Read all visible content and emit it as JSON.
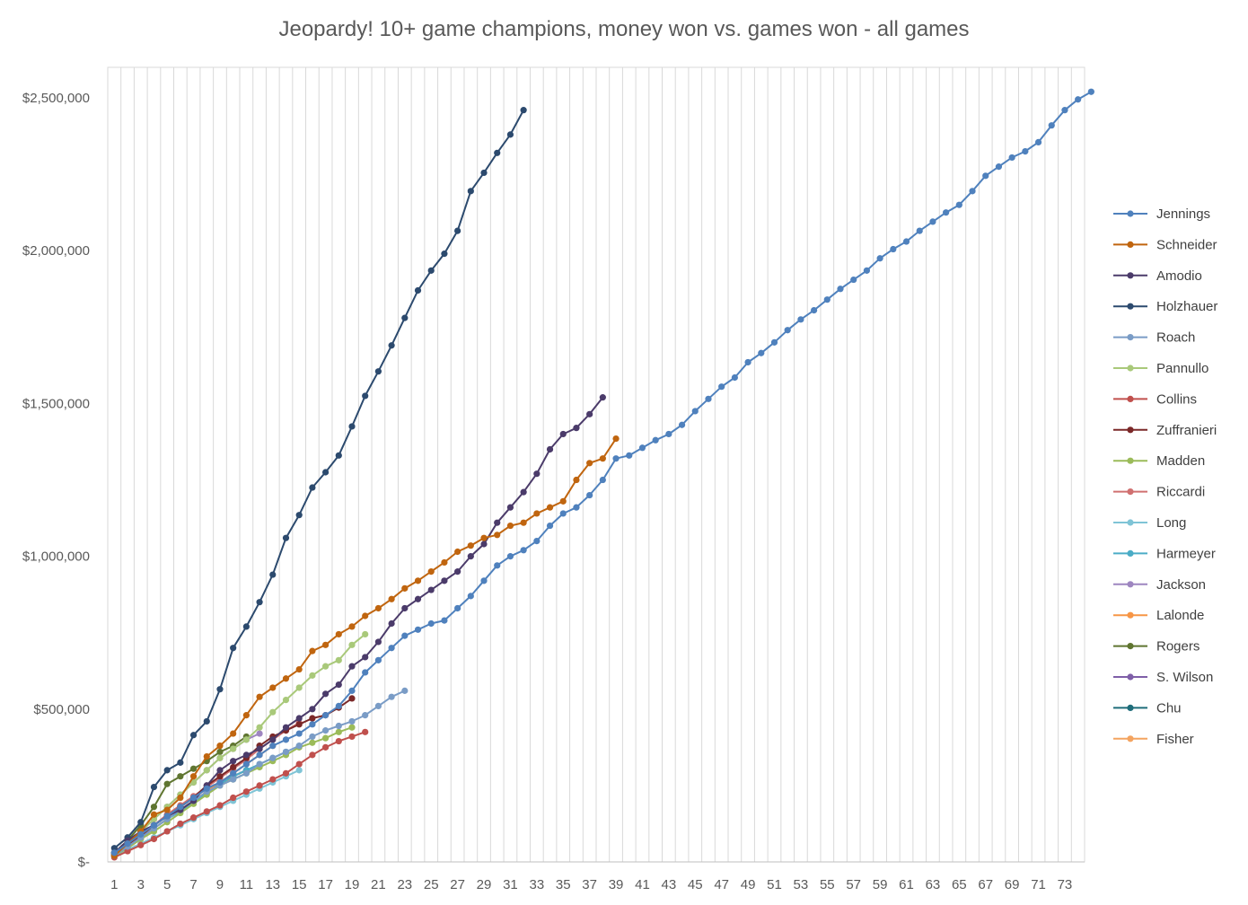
{
  "chart_data": {
    "type": "line",
    "title": "Jeopardy! 10+ game champions, money won vs. games won - all games",
    "xlabel": "",
    "ylabel": "",
    "xlim": [
      1,
      74
    ],
    "ylim": [
      0,
      2600000
    ],
    "x_tick_labels": [
      "1",
      "3",
      "5",
      "7",
      "9",
      "11",
      "13",
      "15",
      "17",
      "19",
      "21",
      "23",
      "25",
      "27",
      "29",
      "31",
      "33",
      "35",
      "37",
      "39",
      "41",
      "43",
      "45",
      "47",
      "49",
      "51",
      "53",
      "55",
      "57",
      "59",
      "61",
      "63",
      "65",
      "67",
      "69",
      "71",
      "73"
    ],
    "y_ticks": [
      {
        "value": 0,
        "label": "$-"
      },
      {
        "value": 500000,
        "label": "$500,000"
      },
      {
        "value": 1000000,
        "label": "$1,000,000"
      },
      {
        "value": 1500000,
        "label": "$1,500,000"
      },
      {
        "value": 2000000,
        "label": "$2,000,000"
      },
      {
        "value": 2500000,
        "label": "$2,500,000"
      }
    ],
    "grid": "vertical",
    "legend_position": "right",
    "series": [
      {
        "name": "Jennings",
        "color": "#4F81BD",
        "values": [
          30000,
          60000,
          90000,
          120000,
          150000,
          180000,
          210000,
          240000,
          260000,
          290000,
          320000,
          350000,
          380000,
          400000,
          420000,
          450000,
          480000,
          510000,
          560000,
          620000,
          660000,
          700000,
          740000,
          760000,
          780000,
          790000,
          830000,
          870000,
          920000,
          970000,
          1000000,
          1020000,
          1050000,
          1100000,
          1140000,
          1160000,
          1200000,
          1250000,
          1320000,
          1330000,
          1355000,
          1380000,
          1400000,
          1430000,
          1475000,
          1515000,
          1555000,
          1585000,
          1635000,
          1665000,
          1700000,
          1740000,
          1775000,
          1805000,
          1840000,
          1875000,
          1905000,
          1935000,
          1975000,
          2005000,
          2030000,
          2065000,
          2095000,
          2125000,
          2150000,
          2195000,
          2245000,
          2275000,
          2305000,
          2325000,
          2355000,
          2410000,
          2460000,
          2495000,
          2520000
        ]
      },
      {
        "name": "Schneider",
        "color": "#C0650F",
        "values": [
          20000,
          60000,
          100000,
          155000,
          170000,
          210000,
          280000,
          345000,
          380000,
          420000,
          480000,
          540000,
          570000,
          600000,
          630000,
          690000,
          710000,
          745000,
          770000,
          805000,
          830000,
          860000,
          895000,
          920000,
          950000,
          980000,
          1015000,
          1035000,
          1060000,
          1070000,
          1100000,
          1110000,
          1140000,
          1160000,
          1180000,
          1250000,
          1305000,
          1320000,
          1385000
        ]
      },
      {
        "name": "Amodio",
        "color": "#4B3B6A",
        "values": [
          30000,
          70000,
          100000,
          120000,
          150000,
          170000,
          200000,
          250000,
          300000,
          330000,
          350000,
          370000,
          400000,
          440000,
          470000,
          500000,
          550000,
          580000,
          640000,
          670000,
          720000,
          780000,
          830000,
          860000,
          890000,
          920000,
          950000,
          1000000,
          1040000,
          1110000,
          1160000,
          1210000,
          1270000,
          1350000,
          1400000,
          1420000,
          1465000,
          1520000
        ]
      },
      {
        "name": "Holzhauer",
        "color": "#2C4A6E",
        "values": [
          45000,
          80000,
          130000,
          245000,
          300000,
          325000,
          415000,
          460000,
          565000,
          700000,
          770000,
          850000,
          940000,
          1060000,
          1135000,
          1225000,
          1275000,
          1330000,
          1425000,
          1525000,
          1605000,
          1690000,
          1780000,
          1870000,
          1935000,
          1990000,
          2065000,
          2195000,
          2255000,
          2320000,
          2380000,
          2460000
        ]
      },
      {
        "name": "Roach",
        "color": "#7A9CC6",
        "values": [
          20000,
          50000,
          80000,
          110000,
          140000,
          170000,
          200000,
          230000,
          250000,
          270000,
          290000,
          320000,
          340000,
          360000,
          380000,
          410000,
          430000,
          445000,
          460000,
          480000,
          510000,
          540000,
          560000
        ]
      },
      {
        "name": "Pannullo",
        "color": "#A9C97A",
        "values": [
          25000,
          60000,
          100000,
          140000,
          180000,
          220000,
          260000,
          300000,
          340000,
          370000,
          400000,
          440000,
          490000,
          530000,
          570000,
          610000,
          640000,
          660000,
          710000,
          745000
        ]
      },
      {
        "name": "Collins",
        "color": "#C0504D",
        "values": [
          15000,
          35000,
          55000,
          75000,
          100000,
          125000,
          145000,
          165000,
          185000,
          210000,
          230000,
          250000,
          270000,
          290000,
          320000,
          350000,
          375000,
          395000,
          410000,
          425000
        ]
      },
      {
        "name": "Zuffranieri",
        "color": "#7B2828",
        "values": [
          25000,
          55000,
          85000,
          120000,
          150000,
          180000,
          210000,
          250000,
          280000,
          310000,
          340000,
          380000,
          410000,
          430000,
          450000,
          470000,
          480000,
          505000,
          535000
        ]
      },
      {
        "name": "Madden",
        "color": "#9BBB59",
        "values": [
          20000,
          45000,
          75000,
          100000,
          130000,
          160000,
          190000,
          220000,
          250000,
          270000,
          290000,
          310000,
          330000,
          350000,
          375000,
          390000,
          405000,
          425000,
          440000
        ]
      },
      {
        "name": "Riccardi",
        "color": "#D07070",
        "values": [
          30000,
          60000,
          90000,
          120000,
          155000,
          185000,
          215000,
          245000,
          275000,
          305000,
          335000,
          370000,
          400000,
          430000,
          455000
        ]
      },
      {
        "name": "Long",
        "color": "#7FC4D6",
        "values": [
          20000,
          40000,
          60000,
          80000,
          100000,
          120000,
          140000,
          160000,
          180000,
          200000,
          220000,
          240000,
          260000,
          280000,
          300000
        ]
      },
      {
        "name": "Harmeyer",
        "color": "#4BACC6",
        "values": [
          25000,
          50000,
          80000,
          110000,
          140000,
          165000,
          195000,
          225000,
          255000,
          280000,
          300000,
          320000,
          340000,
          360000
        ]
      },
      {
        "name": "Jackson",
        "color": "#9E86C0",
        "values": [
          25000,
          60000,
          100000,
          140000,
          180000,
          220000,
          260000,
          300000,
          340000,
          370000,
          400000,
          420000
        ]
      },
      {
        "name": "Lalonde",
        "color": "#F79646",
        "values": [
          25000,
          50000,
          80000,
          110000,
          140000,
          170000,
          200000,
          230000,
          260000,
          290000,
          320000,
          350000,
          380000
        ]
      },
      {
        "name": "Rogers",
        "color": "#5F7530",
        "values": [
          30000,
          70000,
          120000,
          180000,
          255000,
          280000,
          305000,
          330000,
          360000,
          380000,
          410000
        ]
      },
      {
        "name": "S. Wilson",
        "color": "#7F5FA8",
        "values": [
          20000,
          50000,
          80000,
          110000,
          140000,
          180000,
          210000,
          240000,
          260000,
          280000,
          300000
        ]
      },
      {
        "name": "Chu",
        "color": "#1F6D7A",
        "values": [
          30000,
          60000,
          90000,
          120000,
          150000,
          180000,
          210000,
          240000,
          260000,
          280000,
          300000
        ]
      },
      {
        "name": "Fisher",
        "color": "#F4A460",
        "values": [
          20000,
          45000,
          75000,
          110000,
          140000,
          170000,
          200000,
          230000,
          255000,
          275000
        ]
      }
    ]
  }
}
